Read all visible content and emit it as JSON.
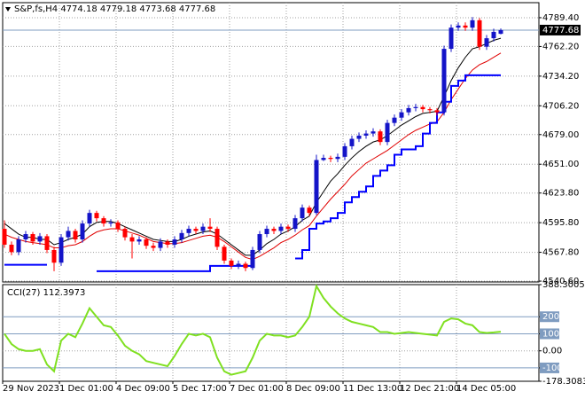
{
  "chart_data": {
    "type": "candlestick",
    "title": "S&P,fs,H4  4774.18 4779.18 4773.68 4777.68",
    "current_price_label": "4777.68",
    "current_price": 4777.68,
    "categories": [
      "29 Nov 2023",
      null,
      null,
      null,
      null,
      null,
      null,
      null,
      "1 Dec 01:00",
      null,
      null,
      null,
      null,
      null,
      null,
      null,
      "4 Dec 09:00",
      null,
      null,
      null,
      null,
      null,
      null,
      null,
      "5 Dec 17:00",
      null,
      null,
      null,
      null,
      null,
      null,
      null,
      "7 Dec 01:00",
      null,
      null,
      null,
      null,
      null,
      null,
      null,
      "8 Dec 09:00",
      null,
      null,
      null,
      null,
      null,
      null,
      null,
      "11 Dec 13:00",
      null,
      null,
      null,
      null,
      null,
      null,
      null,
      "12 Dec 21:00",
      null,
      null,
      null,
      null,
      null,
      null,
      null,
      "14 Dec 05:00",
      null,
      null,
      null,
      null,
      null,
      null
    ],
    "open": [
      4590,
      4575,
      4568,
      4580,
      4585,
      4578,
      4583,
      4570,
      4558,
      4582,
      4588,
      4580,
      4595,
      4605,
      4600,
      4595,
      4596,
      4590,
      4582,
      4578,
      4580,
      4574,
      4572,
      4578,
      4575,
      4580,
      4586,
      4590,
      4588,
      4592,
      4590,
      4573,
      4560,
      4555,
      4557,
      4553,
      4570,
      4585,
      4590,
      4588,
      4592,
      4590,
      4600,
      4610,
      4605,
      4655,
      4657,
      4656,
      4658,
      4668,
      4675,
      4678,
      4680,
      4682,
      4672,
      4690,
      4695,
      4700,
      4704,
      4705,
      4703,
      4702,
      4700,
      4760,
      4780,
      4782,
      4780,
      4787,
      4762,
      4770,
      4774.18
    ],
    "high": [
      4598,
      4578,
      4583,
      4588,
      4587,
      4586,
      4585,
      4573,
      4585,
      4592,
      4590,
      4598,
      4608,
      4607,
      4602,
      4599,
      4598,
      4592,
      4585,
      4583,
      4582,
      4577,
      4581,
      4580,
      4583,
      4589,
      4593,
      4592,
      4595,
      4600,
      4592,
      4575,
      4562,
      4560,
      4559,
      4573,
      4588,
      4593,
      4592,
      4595,
      4594,
      4603,
      4613,
      4612,
      4660,
      4660,
      4659,
      4661,
      4671,
      4678,
      4681,
      4683,
      4685,
      4684,
      4693,
      4698,
      4703,
      4707,
      4708,
      4707,
      4705,
      4704,
      4763,
      4783,
      4785,
      4785,
      4790,
      4789,
      4773,
      4779,
      4779.18
    ],
    "low": [
      4572,
      4565,
      4565,
      4577,
      4575,
      4575,
      4567,
      4550,
      4555,
      4579,
      4577,
      4577,
      4592,
      4597,
      4592,
      4592,
      4587,
      4579,
      4562,
      4575,
      4571,
      4569,
      4569,
      4572,
      4572,
      4577,
      4583,
      4585,
      4585,
      4587,
      4570,
      4557,
      4552,
      4552,
      4550,
      4551,
      4567,
      4582,
      4585,
      4585,
      4587,
      4587,
      4597,
      4602,
      4603,
      4654,
      4653,
      4653,
      4655,
      4665,
      4672,
      4675,
      4677,
      4669,
      4669,
      4687,
      4692,
      4697,
      4701,
      4700,
      4699,
      4697,
      4697,
      4757,
      4777,
      4777,
      4777,
      4759,
      4759,
      4767,
      4773.68
    ],
    "close": [
      4575,
      4568,
      4580,
      4585,
      4578,
      4583,
      4570,
      4558,
      4582,
      4588,
      4580,
      4595,
      4605,
      4600,
      4595,
      4596,
      4590,
      4582,
      4578,
      4580,
      4574,
      4572,
      4578,
      4575,
      4580,
      4586,
      4590,
      4588,
      4592,
      4590,
      4573,
      4560,
      4555,
      4557,
      4553,
      4570,
      4585,
      4590,
      4588,
      4592,
      4590,
      4600,
      4610,
      4605,
      4655,
      4657,
      4656,
      4658,
      4668,
      4675,
      4678,
      4680,
      4682,
      4672,
      4690,
      4695,
      4700,
      4704,
      4705,
      4703,
      4702,
      4700,
      4760,
      4780,
      4782,
      4780,
      4787,
      4762,
      4770,
      4776,
      4777.68
    ],
    "up_color": "#1414c8",
    "down_color": "#ff0000",
    "indicators": [
      {
        "color": "#000000",
        "values": [
          4595,
          4590,
          4585,
          4582,
          4582,
          4580,
          4580,
          4575,
          4577,
          4580,
          4582,
          4585,
          4592,
          4596,
          4597,
          4597,
          4595,
          4592,
          4589,
          4586,
          4583,
          4580,
          4579,
          4578,
          4578,
          4580,
          4583,
          4585,
          4587,
          4588,
          4585,
          4580,
          4575,
          4570,
          4565,
          4565,
          4570,
          4576,
          4580,
          4585,
          4588,
          4592,
          4598,
          4602,
          4615,
          4625,
          4635,
          4642,
          4650,
          4657,
          4663,
          4668,
          4672,
          4674,
          4678,
          4683,
          4688,
          4692,
          4696,
          4699,
          4700,
          4701,
          4715,
          4730,
          4742,
          4752,
          4760,
          4762,
          4765,
          4768,
          4770
        ]
      },
      {
        "color": "#e00000",
        "values": [
          4585,
          4582,
          4580,
          4578,
          4577,
          4576,
          4575,
          4572,
          4572,
          4574,
          4575,
          4578,
          4583,
          4587,
          4589,
          4590,
          4590,
          4588,
          4586,
          4584,
          4581,
          4578,
          4577,
          4576,
          4576,
          4577,
          4579,
          4581,
          4583,
          4584,
          4582,
          4578,
          4573,
          4568,
          4563,
          4561,
          4564,
          4568,
          4572,
          4577,
          4580,
          4584,
          4589,
          4593,
          4602,
          4610,
          4618,
          4625,
          4632,
          4640,
          4646,
          4652,
          4656,
          4660,
          4664,
          4669,
          4674,
          4679,
          4683,
          4686,
          4689,
          4691,
          4700,
          4712,
          4722,
          4732,
          4740,
          4745,
          4748,
          4752,
          4756
        ]
      },
      {
        "color": "#0000ff",
        "step": true,
        "values": [
          4556,
          4556,
          4556,
          4556,
          4556,
          4556,
          4556,
          null,
          null,
          null,
          null,
          null,
          null,
          4550,
          4550,
          4550,
          4550,
          4550,
          4550,
          4550,
          4550,
          4550,
          4550,
          4550,
          4550,
          4550,
          4550,
          4550,
          4550,
          4555,
          4555,
          4555,
          4555,
          4555,
          4555,
          4555,
          null,
          null,
          null,
          null,
          null,
          4562,
          4570,
          4590,
          4595,
          4597,
          4600,
          4605,
          4615,
          4620,
          4625,
          4630,
          4640,
          4645,
          4650,
          4660,
          4665,
          4665,
          4668,
          4680,
          4690,
          4700,
          4710,
          4725,
          4730,
          4735,
          4735,
          4735,
          4735,
          4735,
          4735
        ]
      }
    ],
    "ylim": [
      4539.8,
      4803.6
    ],
    "yticks": [
      {
        "value": 4789.4,
        "label": "4789.40"
      },
      {
        "value": 4762.2,
        "label": "4762.20"
      },
      {
        "value": 4734.2,
        "label": "4734.20"
      },
      {
        "value": 4706.2,
        "label": "4706.20"
      },
      {
        "value": 4679,
        "label": "4679.00"
      },
      {
        "value": 4651,
        "label": "4651.00"
      },
      {
        "value": 4623.8,
        "label": "4623.80"
      },
      {
        "value": 4595.8,
        "label": "4595.80"
      },
      {
        "value": 4567.8,
        "label": "4567.80"
      },
      {
        "value": 4540.6,
        "label": "4540.60"
      }
    ],
    "grid": true,
    "cci": {
      "label": "CCI(27) 112.3973",
      "color": "#7fe020",
      "level_color": "#7f9cc0",
      "values": [
        100,
        40,
        10,
        0,
        0,
        10,
        -80,
        -120,
        60,
        100,
        80,
        160,
        250,
        200,
        150,
        140,
        90,
        30,
        0,
        -20,
        -60,
        -70,
        -80,
        -90,
        -30,
        40,
        100,
        90,
        100,
        80,
        -40,
        -120,
        -140,
        -130,
        -120,
        -40,
        60,
        100,
        90,
        90,
        80,
        90,
        140,
        200,
        380,
        310,
        260,
        220,
        190,
        170,
        160,
        150,
        140,
        110,
        110,
        100,
        105,
        110,
        105,
        100,
        95,
        90,
        170,
        190,
        185,
        160,
        150,
        110,
        105,
        108,
        112.3973
      ],
      "ylim": [
        -178.3083,
        388.3005
      ],
      "yticks": [
        388.3005,
        200,
        100,
        {
          "value": 0,
          "label": "0.00"
        },
        -100,
        -178.3083
      ]
    }
  }
}
